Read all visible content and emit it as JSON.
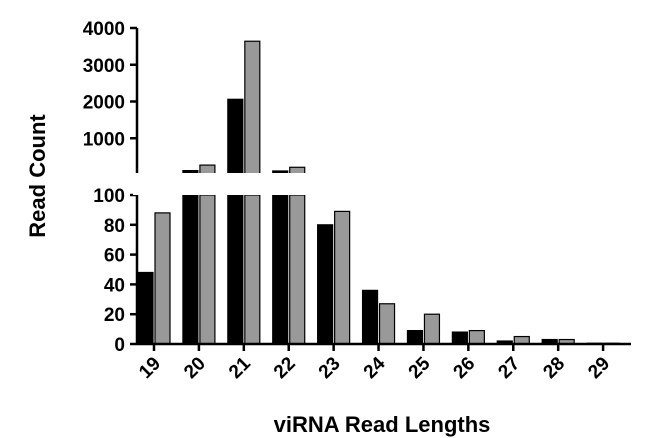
{
  "chart_data": {
    "type": "bar",
    "title": "",
    "xlabel": "viRNA Read Lengths",
    "ylabel": "Read Count",
    "categories": [
      "19",
      "20",
      "21",
      "22",
      "23",
      "24",
      "25",
      "26",
      "27",
      "28",
      "29"
    ],
    "series": [
      {
        "color": "#000000",
        "values": [
          48,
          120,
          2060,
          110,
          80,
          36,
          9,
          8,
          2,
          3,
          0.5
        ]
      },
      {
        "color": "#999999",
        "values": [
          88,
          270,
          3640,
          210,
          89,
          27,
          20,
          9,
          5,
          3,
          0.5
        ]
      }
    ],
    "y_axis_break": {
      "lower": {
        "ylim": [
          0,
          100
        ],
        "ticks": [
          "0",
          "20",
          "40",
          "60",
          "80",
          "100"
        ]
      },
      "upper": {
        "ylim": [
          100,
          4000
        ],
        "ticks": [
          "1000",
          "2000",
          "3000",
          "4000"
        ]
      }
    },
    "grid": false,
    "legend": "none"
  }
}
